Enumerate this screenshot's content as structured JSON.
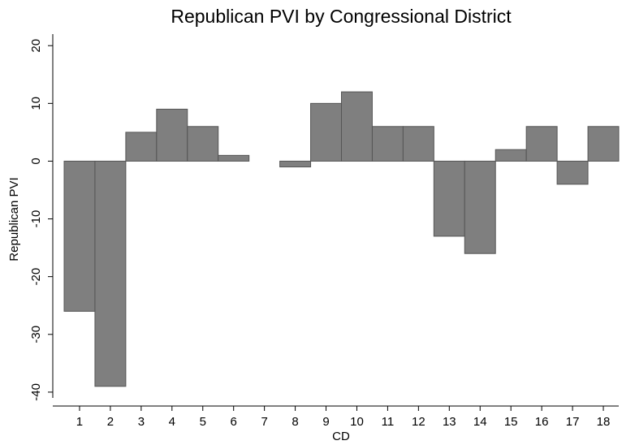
{
  "chart_data": {
    "type": "bar",
    "title": "Republican PVI by Congressional District",
    "x_label": "CD",
    "y_label": "Republican PVI",
    "categories": [
      "1",
      "2",
      "3",
      "4",
      "5",
      "6",
      "7",
      "8",
      "9",
      "10",
      "11",
      "12",
      "13",
      "14",
      "15",
      "16",
      "17",
      "18"
    ],
    "values": [
      -26,
      -39,
      5,
      9,
      6,
      1,
      0,
      -1,
      10,
      12,
      6,
      6,
      -13,
      -16,
      2,
      6,
      -4,
      6
    ],
    "color": "#7f7f7f",
    "ylim": [
      -41,
      22
    ],
    "yticks": [
      -40,
      -30,
      -20,
      -10,
      0,
      10,
      20
    ],
    "grid": false
  }
}
